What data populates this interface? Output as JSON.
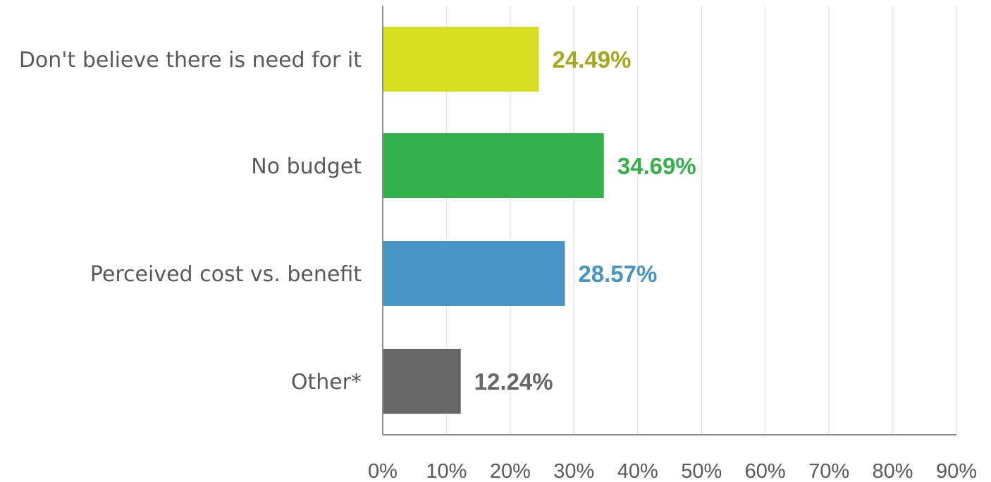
{
  "chart_data": {
    "type": "bar",
    "orientation": "horizontal",
    "title": "",
    "xlabel": "",
    "ylabel": "",
    "categories": [
      "Don't believe there is need for it",
      "No budget",
      "Perceived cost vs. benefit",
      "Other*"
    ],
    "values": [
      24.49,
      34.69,
      28.57,
      12.24
    ],
    "value_labels": [
      "24.49%",
      "34.69%",
      "28.57%",
      "12.24%"
    ],
    "bar_colors": [
      "#d5de1f",
      "#33b24c",
      "#4695c4",
      "#666666"
    ],
    "label_colors": [
      "#a4a81c",
      "#33b24c",
      "#4695c4",
      "#666666"
    ],
    "xlim": [
      0,
      90
    ],
    "xticks": [
      0,
      10,
      20,
      30,
      40,
      50,
      60,
      70,
      80,
      90
    ],
    "xtick_labels": [
      "0%",
      "10%",
      "20%",
      "30%",
      "40%",
      "50%",
      "60%",
      "70%",
      "80%",
      "90%"
    ],
    "grid": true,
    "legend": "none"
  }
}
